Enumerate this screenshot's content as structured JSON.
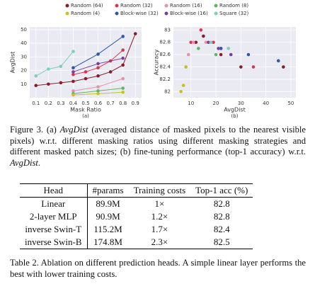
{
  "chart_data": [
    {
      "type": "line",
      "xlabel": "Mask Ratio",
      "ylabel": "AvgDist",
      "panel": "(a)",
      "xlim": [
        0.05,
        0.95
      ],
      "ylim": [
        0,
        52
      ],
      "xticks": [
        0.1,
        0.2,
        0.3,
        0.4,
        0.5,
        0.6,
        0.7,
        0.8,
        0.9
      ],
      "yticks": [
        10,
        20,
        30,
        40,
        50
      ],
      "grid": true,
      "series": [
        {
          "name": "Random (64)",
          "color": "#8b1a2b",
          "x": [
            0.1,
            0.2,
            0.3,
            0.4,
            0.5,
            0.6,
            0.7,
            0.8,
            0.9
          ],
          "values": [
            9,
            10,
            11,
            12,
            14,
            16,
            19,
            24,
            47
          ]
        },
        {
          "name": "Random (32)",
          "color": "#d6364f",
          "x": [
            0.4,
            0.5,
            0.6,
            0.7,
            0.8
          ],
          "values": [
            17,
            19,
            22,
            27,
            35
          ]
        },
        {
          "name": "Random (16)",
          "color": "#e98fa8",
          "x": [
            0.4,
            0.6,
            0.8
          ],
          "values": [
            5,
            8,
            14
          ]
        },
        {
          "name": "Random (8)",
          "color": "#5bb85d",
          "x": [
            0.4,
            0.6,
            0.8
          ],
          "values": [
            3,
            5,
            7
          ]
        },
        {
          "name": "Random (4)",
          "color": "#c9c11d",
          "x": [
            0.4,
            0.6,
            0.8
          ],
          "values": [
            2,
            3,
            4
          ]
        },
        {
          "name": "Block-wise (32)",
          "color": "#2b5aa8",
          "x": [
            0.4,
            0.6,
            0.8
          ],
          "values": [
            22,
            32,
            45
          ]
        },
        {
          "name": "Block-wise (16)",
          "color": "#7a3f9e",
          "x": [
            0.4,
            0.6,
            0.8
          ],
          "values": [
            19,
            25,
            29
          ]
        },
        {
          "name": "Square (32)",
          "color": "#7ccfb8",
          "x": [
            0.1,
            0.2,
            0.3,
            0.4
          ],
          "values": [
            16,
            21,
            23,
            34
          ]
        }
      ]
    },
    {
      "type": "scatter",
      "xlabel": "AvgDist",
      "ylabel": "Accuracy",
      "panel": "(b)",
      "xlim": [
        3,
        52
      ],
      "ylim": [
        81.9,
        83.05
      ],
      "xticks": [
        10,
        20,
        30,
        40,
        50
      ],
      "yticks": [
        82,
        82.2,
        82.4,
        82.6,
        82.8,
        83
      ],
      "grid": true,
      "series": [
        {
          "color": "#8b1a2b",
          "x": [
            12,
            15,
            22,
            30,
            47
          ],
          "values": [
            82.8,
            82.9,
            82.6,
            82.4,
            82.4
          ]
        },
        {
          "color": "#d6364f",
          "x": [
            10,
            14,
            19,
            22,
            35
          ],
          "values": [
            82.8,
            83,
            82.8,
            82.7,
            82.4
          ]
        },
        {
          "color": "#e98fa8",
          "x": [
            9,
            11,
            16
          ],
          "values": [
            82.6,
            82.8,
            82.8
          ]
        },
        {
          "color": "#5bb85d",
          "x": [
            8,
            13,
            20
          ],
          "values": [
            82.4,
            82.7,
            82.6
          ]
        },
        {
          "color": "#c9c11d",
          "x": [
            6,
            7,
            8
          ],
          "values": [
            82,
            82.1,
            82.4
          ]
        },
        {
          "color": "#2b5aa8",
          "x": [
            22,
            33,
            45
          ],
          "values": [
            82.7,
            82.6,
            82.5
          ]
        },
        {
          "color": "#7a3f9e",
          "x": [
            17,
            21,
            26
          ],
          "values": [
            82.8,
            82.7,
            82.6
          ]
        },
        {
          "color": "#7ccfb8",
          "x": [
            18,
            25
          ],
          "values": [
            82.8,
            82.7
          ]
        }
      ]
    }
  ],
  "figure_caption": [
    "Figure 3. (a) ",
    "AvgDist",
    " (averaged distance of masked pixels to the nearest visible pixels) w.r.t. different masking ratios using different masking strategies and different masked patch sizes; (b) fine-tuning performance (top-1 accuracy) w.r.t. ",
    "AvgDist",
    "."
  ],
  "table": {
    "header": [
      "Head",
      "#params",
      "Training costs",
      "Top-1 acc (%)"
    ],
    "rows": [
      [
        "Linear",
        "89.9M",
        "1×",
        82.8
      ],
      [
        "2-layer MLP",
        "90.9M",
        "1.2×",
        82.8
      ],
      [
        "inverse Swin-T",
        "115.2M",
        "1.7×",
        82.4
      ],
      [
        "inverse Swin-B",
        "174.8M",
        "2.3×",
        82.5
      ]
    ]
  },
  "table_caption": "Table 2. Ablation on different prediction heads. A simple linear layer performs the best with lower training costs."
}
